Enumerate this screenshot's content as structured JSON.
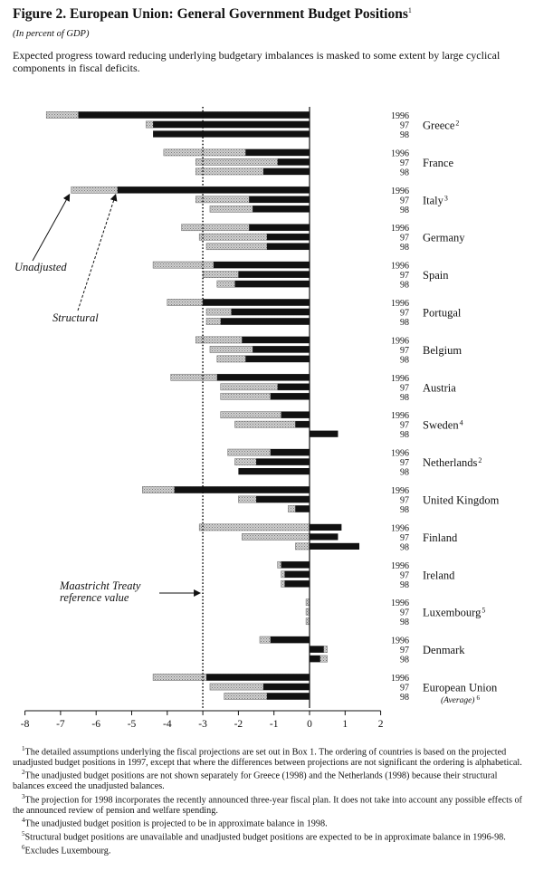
{
  "figure": {
    "title": "Figure 2.  European Union:  General Government Budget Positions",
    "title_note": "1",
    "subtitle": "(In percent of GDP)",
    "lead": "Expected progress toward reducing underlying budgetary imbalances is masked to some extent by large cyclical components in fiscal deficits."
  },
  "chart_data": {
    "type": "bar",
    "orientation": "horizontal",
    "xlim": [
      -8,
      2
    ],
    "x_ticks": [
      "-8",
      "-7",
      "-6",
      "-5",
      "-4",
      "-3",
      "-2",
      "-1",
      "0",
      "1",
      "2"
    ],
    "grid": false,
    "years": [
      "1996",
      "97",
      "98"
    ],
    "reference_value": -3,
    "annotations": {
      "unadjusted": "Unadjusted",
      "structural": "Structural",
      "reference": "Maastricht Treaty\nreference value"
    },
    "colors": {
      "structural": "#111111",
      "unadjusted": "#bcbcbc",
      "reference": "#111111"
    },
    "countries": [
      {
        "name": "Greece",
        "note": "2",
        "unadjusted": [
          -7.4,
          -4.6,
          null
        ],
        "structural": [
          -6.5,
          -4.4,
          -4.4
        ]
      },
      {
        "name": "France",
        "note": "",
        "unadjusted": [
          -4.1,
          -3.2,
          -3.2
        ],
        "structural": [
          -1.8,
          -0.9,
          -1.3
        ]
      },
      {
        "name": "Italy",
        "note": "3",
        "unadjusted": [
          -6.7,
          -3.2,
          -2.8
        ],
        "structural": [
          -5.4,
          -1.7,
          -1.6
        ]
      },
      {
        "name": "Germany",
        "note": "",
        "unadjusted": [
          -3.6,
          -3.1,
          -2.9
        ],
        "structural": [
          -1.7,
          -1.2,
          -1.2
        ]
      },
      {
        "name": "Spain",
        "note": "",
        "unadjusted": [
          -4.4,
          -3.0,
          -2.6
        ],
        "structural": [
          -2.7,
          -2.0,
          -2.1
        ]
      },
      {
        "name": "Portugal",
        "note": "",
        "unadjusted": [
          -4.0,
          -2.9,
          -2.9
        ],
        "structural": [
          -3.0,
          -2.2,
          -2.5
        ]
      },
      {
        "name": "Belgium",
        "note": "",
        "unadjusted": [
          -3.2,
          -2.8,
          -2.6
        ],
        "structural": [
          -1.9,
          -1.6,
          -1.8
        ]
      },
      {
        "name": "Austria",
        "note": "",
        "unadjusted": [
          -3.9,
          -2.5,
          -2.5
        ],
        "structural": [
          -2.6,
          -0.9,
          -1.1
        ]
      },
      {
        "name": "Sweden",
        "note": "4",
        "unadjusted": [
          -2.5,
          -2.1,
          null
        ],
        "structural": [
          -0.8,
          -0.4,
          0.8
        ]
      },
      {
        "name": "Netherlands",
        "note": "2",
        "unadjusted": [
          -2.3,
          -2.1,
          null
        ],
        "structural": [
          -1.1,
          -1.5,
          -2.0
        ]
      },
      {
        "name": "United Kingdom",
        "note": "",
        "unadjusted": [
          -4.7,
          -2.0,
          -0.6
        ],
        "structural": [
          -3.8,
          -1.5,
          -0.4
        ]
      },
      {
        "name": "Finland",
        "note": "",
        "unadjusted": [
          -3.1,
          -1.9,
          -0.4
        ],
        "structural": [
          0.9,
          0.8,
          1.4
        ]
      },
      {
        "name": "Ireland",
        "note": "",
        "unadjusted": [
          -0.9,
          -0.8,
          -0.8
        ],
        "structural": [
          -0.8,
          -0.7,
          -0.7
        ]
      },
      {
        "name": "Luxembourg",
        "note": "5",
        "unadjusted": [
          -0.1,
          -0.1,
          -0.1
        ],
        "structural": [
          null,
          null,
          null
        ]
      },
      {
        "name": "Denmark",
        "note": "",
        "unadjusted": [
          -1.4,
          0.5,
          0.5
        ],
        "structural": [
          -1.1,
          0.4,
          0.3
        ]
      },
      {
        "name": "European Union",
        "note": "",
        "sublabel": "(Average)",
        "sublabel_note": "6",
        "unadjusted": [
          -4.4,
          -2.8,
          -2.4
        ],
        "structural": [
          -2.9,
          -1.3,
          -1.2
        ]
      }
    ]
  },
  "footnotes": [
    {
      "num": "1",
      "text": "The detailed assumptions underlying the fiscal projections are set out in Box 1.  The ordering of countries is based on the projected unadjusted budget positions in 1997, except that where the differences between projections are not significant the ordering is alphabetical."
    },
    {
      "num": "2",
      "text": "The unadjusted budget positions are not shown separately for Greece (1998) and the Netherlands (1998) because their structural balances exceed the unadjusted balances."
    },
    {
      "num": "3",
      "text": "The projection for 1998 incorporates the recently announced three-year fiscal plan.  It does not take into account any possible effects of the announced review of pension and welfare spending."
    },
    {
      "num": "4",
      "text": "The unadjusted budget position is projected to be in approximate balance in 1998."
    },
    {
      "num": "5",
      "text": "Structural budget positions are unavailable and unadjusted budget positions are expected to be in approximate balance in 1996-98."
    },
    {
      "num": "6",
      "text": "Excludes Luxembourg."
    }
  ]
}
